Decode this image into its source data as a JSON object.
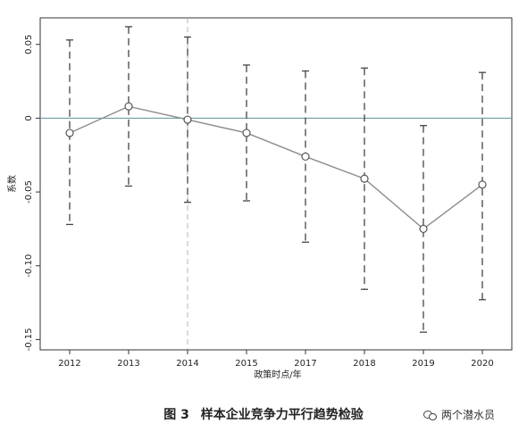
{
  "chart_data": {
    "type": "line",
    "title": "",
    "xlabel": "政策时点/年",
    "ylabel": "系数",
    "categories": [
      "2012",
      "2013",
      "2014",
      "2015",
      "2017",
      "2018",
      "2019",
      "2020"
    ],
    "series": [
      {
        "values": [
          -0.01,
          0.008,
          -0.001,
          -0.01,
          -0.026,
          -0.041,
          -0.075,
          -0.045
        ],
        "ci_lower": [
          -0.072,
          -0.046,
          -0.057,
          -0.056,
          -0.084,
          -0.116,
          -0.145,
          -0.123
        ],
        "ci_upper": [
          0.053,
          0.062,
          0.055,
          0.036,
          0.032,
          0.034,
          -0.005,
          0.031
        ]
      }
    ],
    "yticks": [
      0.05,
      0,
      -0.05,
      -0.1,
      -0.15
    ],
    "ytick_labels": [
      "0.05",
      "0",
      "-0.05",
      "-0.10",
      "-0.15"
    ],
    "ylim": [
      -0.157,
      0.068
    ],
    "reference_line_y": 0,
    "policy_line_category": "2014",
    "grid": false,
    "colors": {
      "line": "#8c8c8c",
      "ci": "#444444",
      "zero_line": "#6e9ea6",
      "policy_line": "#9cc0bc",
      "axis": "#333333"
    }
  },
  "figure": {
    "label": "图 3",
    "caption": "样本企业竞争力平行趋势检验"
  },
  "watermark": {
    "text": "两个潜水员",
    "icon": "wechat-icon"
  }
}
